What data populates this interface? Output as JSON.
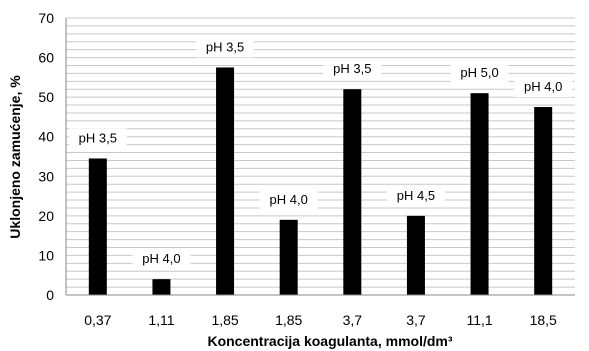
{
  "chart_data": {
    "type": "bar",
    "xlabel": "Koncentracija koagulanta, mmol/dm³",
    "ylabel": "Uklonjeno zamućenje, %",
    "ylim": [
      0,
      70
    ],
    "yticks": [
      0,
      10,
      20,
      30,
      40,
      50,
      60,
      70
    ],
    "grid": true,
    "categories": [
      "0,37",
      "1,11",
      "1,85",
      "1,85",
      "3,7",
      "3,7",
      "11,1",
      "18,5"
    ],
    "values": [
      34.5,
      4,
      57.5,
      19,
      52,
      20,
      51,
      47.5
    ],
    "data_labels": [
      "pH 3,5",
      "pH 4,0",
      "pH 3,5",
      "pH 4,0",
      "pH 3,5",
      "pH 4,5",
      "pH 5,0",
      "pH 4,0"
    ],
    "bar_color": "#000000",
    "grid_color": "#c8c8c8"
  }
}
